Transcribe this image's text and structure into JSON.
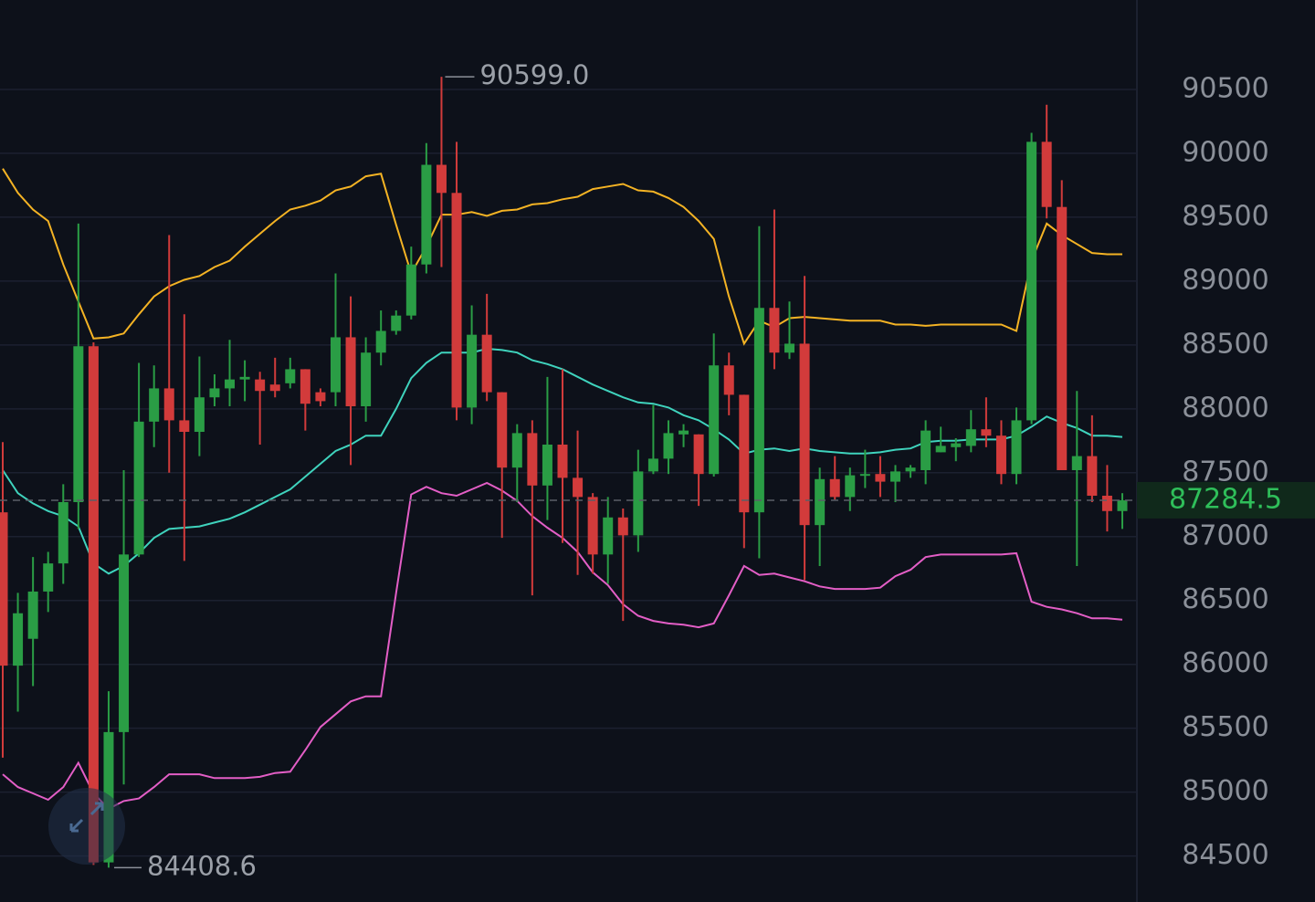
{
  "chart_data": {
    "type": "candlestick",
    "ylim": [
      84140,
      91200
    ],
    "yticks": [
      84500,
      85000,
      85500,
      86000,
      86500,
      87000,
      87500,
      88000,
      88500,
      89000,
      89500,
      90000,
      90500
    ],
    "grid": true,
    "up_color": "#2a9d45",
    "down_color": "#d23b3b",
    "open": [
      87190,
      85990,
      86200,
      86570,
      86790,
      87270,
      88490,
      84450,
      85470,
      86860,
      87900,
      88160,
      87910,
      87820,
      88090,
      88160,
      88230,
      88230,
      88190,
      88200,
      88310,
      88130,
      88130,
      88560,
      88020,
      88440,
      88610,
      88730,
      89130,
      89910,
      89690,
      88010,
      88580,
      88130,
      87540,
      87810,
      87400,
      87720,
      87460,
      87310,
      86860,
      87150,
      87010,
      87510,
      87610,
      87800,
      87800,
      87490,
      88340,
      88110,
      87190,
      88790,
      88440,
      88510,
      87090,
      87450,
      87310,
      87480,
      87490,
      87430,
      87510,
      87520,
      87660,
      87700,
      87710,
      87840,
      87790,
      87490,
      87910,
      90090,
      89580,
      87520,
      87630,
      87320,
      87200
    ],
    "high": [
      87740,
      86560,
      86840,
      86880,
      87410,
      89450,
      88520,
      85790,
      87520,
      88360,
      88340,
      89360,
      88740,
      88410,
      88270,
      88540,
      88380,
      88290,
      88400,
      88400,
      88310,
      88160,
      89060,
      88880,
      88560,
      88770,
      88770,
      89270,
      90080,
      90599,
      90090,
      88810,
      88900,
      88130,
      87880,
      87910,
      88250,
      88310,
      87830,
      87340,
      87310,
      87220,
      87680,
      88030,
      87910,
      87880,
      87800,
      88590,
      88440,
      88110,
      89430,
      89560,
      88840,
      89040,
      87540,
      87630,
      87540,
      87680,
      87630,
      87560,
      87560,
      87910,
      87860,
      87770,
      87990,
      88090,
      87910,
      88010,
      90160,
      90380,
      89790,
      88140,
      87950,
      87560,
      87340
    ],
    "low": [
      85270,
      85630,
      85830,
      86410,
      86630,
      87060,
      84430,
      84408.6,
      85060,
      86840,
      87700,
      87500,
      86810,
      87630,
      88020,
      88020,
      88060,
      87720,
      88090,
      88160,
      87830,
      88020,
      88020,
      87560,
      87900,
      88340,
      88580,
      88700,
      89060,
      89110,
      87910,
      87880,
      88060,
      86990,
      87270,
      86540,
      87130,
      86950,
      86700,
      86710,
      86630,
      86340,
      86880,
      87490,
      87490,
      87700,
      87240,
      87470,
      87950,
      86910,
      86830,
      88310,
      88390,
      86660,
      86770,
      87290,
      87200,
      87380,
      87310,
      87270,
      87460,
      87410,
      87660,
      87590,
      87660,
      87700,
      87410,
      87410,
      87880,
      89490,
      87520,
      86770,
      87270,
      87040,
      87060
    ],
    "close": [
      85990,
      86400,
      86570,
      86790,
      87270,
      88490,
      84450,
      85470,
      86860,
      87900,
      88160,
      87910,
      87820,
      88090,
      88160,
      88230,
      88250,
      88140,
      88140,
      88310,
      88040,
      88060,
      88560,
      88020,
      88440,
      88610,
      88730,
      89130,
      89910,
      89690,
      88010,
      88580,
      88130,
      87540,
      87810,
      87400,
      87720,
      87460,
      87310,
      86860,
      87150,
      87010,
      87510,
      87610,
      87810,
      87830,
      87490,
      88340,
      88110,
      87190,
      88790,
      88440,
      88510,
      87090,
      87450,
      87310,
      87480,
      87490,
      87430,
      87510,
      87540,
      87830,
      87710,
      87730,
      87840,
      87790,
      87490,
      87910,
      90090,
      89580,
      87520,
      87630,
      87320,
      87200,
      87284.5
    ],
    "series": [
      {
        "color": "#f4b324",
        "values": [
          89880,
          89690,
          89560,
          89470,
          89130,
          88840,
          88550,
          88560,
          88590,
          88740,
          88880,
          88960,
          89010,
          89040,
          89110,
          89160,
          89270,
          89370,
          89470,
          89560,
          89590,
          89630,
          89710,
          89740,
          89820,
          89840,
          89440,
          89060,
          89270,
          89520,
          89520,
          89540,
          89510,
          89550,
          89560,
          89600,
          89610,
          89640,
          89660,
          89720,
          89740,
          89760,
          89710,
          89700,
          89650,
          89580,
          89470,
          89330,
          88880,
          88510,
          88690,
          88640,
          88710,
          88720,
          88710,
          88700,
          88690,
          88690,
          88690,
          88660,
          88660,
          88650,
          88660,
          88660,
          88660,
          88660,
          88660,
          88610,
          89160,
          89450,
          89360,
          89290,
          89220,
          89210,
          89210
        ]
      },
      {
        "color": "#3fd3bd",
        "values": [
          87520,
          87340,
          87260,
          87200,
          87160,
          87080,
          86790,
          86710,
          86770,
          86870,
          86990,
          87060,
          87070,
          87080,
          87110,
          87140,
          87190,
          87250,
          87310,
          87370,
          87470,
          87570,
          87670,
          87720,
          87790,
          87790,
          88000,
          88240,
          88360,
          88440,
          88440,
          88440,
          88470,
          88460,
          88440,
          88380,
          88350,
          88310,
          88250,
          88190,
          88140,
          88090,
          88050,
          88040,
          88010,
          87950,
          87910,
          87840,
          87760,
          87650,
          87680,
          87690,
          87670,
          87690,
          87670,
          87660,
          87650,
          87650,
          87660,
          87680,
          87690,
          87740,
          87750,
          87750,
          87760,
          87760,
          87760,
          87790,
          87860,
          87940,
          87890,
          87850,
          87790,
          87790,
          87780
        ]
      },
      {
        "color": "#e35ec6",
        "values": [
          85140,
          85040,
          84990,
          84940,
          85040,
          85230,
          84990,
          84870,
          84930,
          84950,
          85040,
          85140,
          85140,
          85140,
          85110,
          85110,
          85110,
          85120,
          85150,
          85160,
          85330,
          85510,
          85610,
          85710,
          85750,
          85750,
          86560,
          87330,
          87390,
          87340,
          87320,
          87370,
          87420,
          87360,
          87280,
          87160,
          87070,
          86990,
          86880,
          86720,
          86620,
          86470,
          86380,
          86340,
          86320,
          86310,
          86290,
          86320,
          86540,
          86770,
          86700,
          86710,
          86680,
          86650,
          86610,
          86590,
          86590,
          86590,
          86600,
          86690,
          86740,
          86840,
          86860,
          86860,
          86860,
          86860,
          86860,
          86870,
          86490,
          86450,
          86430,
          86400,
          86360,
          86360,
          86350
        ]
      }
    ],
    "last_price": 87284.5,
    "high_marker": {
      "value": 90599,
      "label": "90599.0"
    },
    "low_marker": 84408.6
  }
}
